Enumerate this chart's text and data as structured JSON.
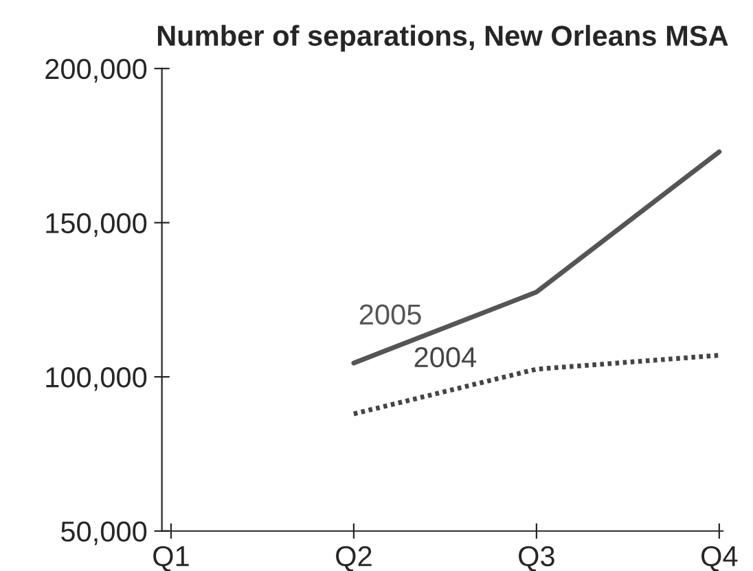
{
  "chart_data": {
    "type": "line",
    "title": "Number of separations, New Orleans MSA",
    "categories": [
      "Q1",
      "Q2",
      "Q3",
      "Q4"
    ],
    "series": [
      {
        "name": "2005",
        "color": "#555555",
        "values": [
          null,
          104500,
          127500,
          173000
        ],
        "line_style": "solid"
      },
      {
        "name": "2004",
        "color": "#444444",
        "values": [
          null,
          88000,
          102500,
          107000
        ],
        "line_style": "dotted"
      }
    ],
    "ylim": [
      50000,
      200000
    ],
    "yticks": [
      {
        "value": 50000,
        "label": "50,000"
      },
      {
        "value": 100000,
        "label": "100,000"
      },
      {
        "value": 150000,
        "label": "150,000"
      },
      {
        "value": 200000,
        "label": "200,000"
      }
    ],
    "grid": false,
    "marker": "none"
  }
}
